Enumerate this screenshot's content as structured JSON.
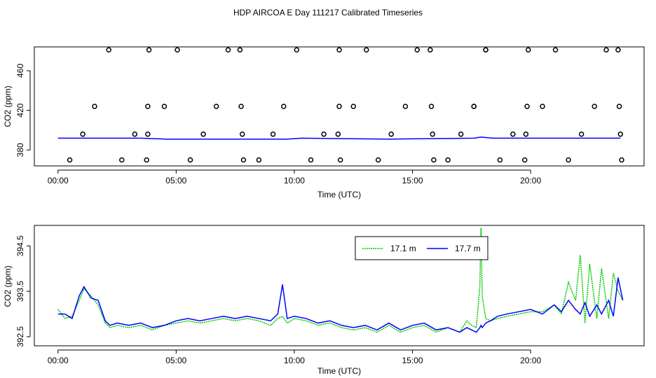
{
  "title": "HDP AIRCOA E  Day 111217  Calibrated Timeseries",
  "colors": {
    "s1": "#00c800",
    "s2": "#0000ff",
    "open_circles": "#000000"
  },
  "chart_data": [
    {
      "type": "scatter",
      "xlabel": "Time (UTC)",
      "ylabel": "CO2 (ppm)",
      "x_unit": "hours UTC",
      "xlim": [
        -1.0,
        24.8
      ],
      "ylim": [
        364,
        484
      ],
      "x_ticks": [
        0,
        5,
        10,
        15,
        20
      ],
      "x_tick_labels": [
        "00:00",
        "05:00",
        "10:00",
        "15:00",
        "20:00"
      ],
      "y_ticks": [
        380,
        420,
        460
      ],
      "y_tick_labels": [
        "380",
        "420",
        "460"
      ],
      "grid": false,
      "baseline_series": [
        {
          "x": [
            0,
            3.5,
            4.6,
            9.7,
            10.3,
            14.0,
            17.6,
            17.9,
            18.4,
            23.8
          ],
          "values": [
            392,
            392,
            391,
            391,
            392,
            391,
            392,
            393,
            392,
            392
          ]
        }
      ],
      "circle_points": {
        "x": [
          0.5,
          2.15,
          1.05,
          1.55,
          2.7,
          3.25,
          3.75,
          3.8,
          3.8,
          3.85,
          4.5,
          5.05,
          5.6,
          6.15,
          6.7,
          7.2,
          7.7,
          7.75,
          7.8,
          7.85,
          8.5,
          9.1,
          9.55,
          10.1,
          10.7,
          11.25,
          11.85,
          11.9,
          11.9,
          11.95,
          12.5,
          13.05,
          13.55,
          14.1,
          14.7,
          15.2,
          15.75,
          15.8,
          15.85,
          15.9,
          16.5,
          17.05,
          17.6,
          17.6,
          18.1,
          18.1,
          18.7,
          19.25,
          19.75,
          19.8,
          19.85,
          19.9,
          20.5,
          21.05,
          21.6,
          22.15,
          22.7,
          23.2,
          23.7,
          23.75,
          23.8,
          23.85
        ],
        "values": [
          370,
          481,
          396,
          424,
          370,
          396,
          370,
          396,
          424,
          481,
          424,
          481,
          370,
          396,
          424,
          481,
          481,
          424,
          396,
          370,
          370,
          396,
          424,
          481,
          370,
          396,
          396,
          424,
          481,
          370,
          424,
          481,
          370,
          396,
          424,
          481,
          481,
          424,
          396,
          370,
          370,
          396,
          424,
          424,
          481,
          481,
          370,
          396,
          370,
          396,
          424,
          481,
          424,
          481,
          370,
          396,
          424,
          481,
          481,
          424,
          396,
          370
        ]
      }
    },
    {
      "type": "line",
      "xlabel": "Time (UTC)",
      "ylabel": "CO2 (ppm)",
      "x_unit": "hours UTC",
      "xlim": [
        -1.0,
        24.8
      ],
      "ylim": [
        392.3,
        394.95
      ],
      "x_ticks": [
        0,
        5,
        10,
        15,
        20
      ],
      "x_tick_labels": [
        "00:00",
        "05:00",
        "10:00",
        "15:00",
        "20:00"
      ],
      "y_ticks": [
        392.5,
        393.5,
        394.5
      ],
      "y_tick_labels": [
        "392.5",
        "393.5",
        "394.5"
      ],
      "grid": false,
      "legend": {
        "placement": "top-right",
        "entries": [
          "17.1 m",
          "17.7 m"
        ]
      },
      "series": [
        {
          "name": "17.1 m",
          "color": "#00c800",
          "x": [
            0,
            0.3,
            0.6,
            0.9,
            1.1,
            1.4,
            1.7,
            2.0,
            2.2,
            2.5,
            3.0,
            3.5,
            4.0,
            4.5,
            5.0,
            5.5,
            6.0,
            6.5,
            7.0,
            7.5,
            8.0,
            8.5,
            9.0,
            9.3,
            9.5,
            9.7,
            10.0,
            10.5,
            11.0,
            11.5,
            12.0,
            12.5,
            13.0,
            13.5,
            14.0,
            14.5,
            15.0,
            15.5,
            16.0,
            16.5,
            17.0,
            17.3,
            17.5,
            17.7,
            17.85,
            17.9,
            17.95,
            18.1,
            18.3,
            18.6,
            19.0,
            19.5,
            20.0,
            20.5,
            21.0,
            21.3,
            21.6,
            21.9,
            22.1,
            22.3,
            22.5,
            22.8,
            23.0,
            23.3,
            23.5,
            23.7,
            23.9
          ],
          "values": [
            393.1,
            392.9,
            392.95,
            393.3,
            393.55,
            393.4,
            393.2,
            392.8,
            392.7,
            392.75,
            392.7,
            392.75,
            392.65,
            392.75,
            392.8,
            392.85,
            392.8,
            392.85,
            392.9,
            392.85,
            392.9,
            392.85,
            392.75,
            392.9,
            392.95,
            392.8,
            392.9,
            392.85,
            392.75,
            392.8,
            392.7,
            392.65,
            392.7,
            392.6,
            392.75,
            392.6,
            392.7,
            392.75,
            392.6,
            392.7,
            392.6,
            392.85,
            392.75,
            392.7,
            393.6,
            394.9,
            393.4,
            392.9,
            392.85,
            392.9,
            392.95,
            393.0,
            393.05,
            393.05,
            393.2,
            393.0,
            393.7,
            393.3,
            394.3,
            392.8,
            394.1,
            392.9,
            394.0,
            392.9,
            393.9,
            393.5,
            393.3
          ]
        },
        {
          "name": "17.7 m",
          "color": "#0000ff",
          "x": [
            0,
            0.3,
            0.6,
            0.9,
            1.1,
            1.4,
            1.7,
            2.0,
            2.2,
            2.5,
            3.0,
            3.5,
            4.0,
            4.5,
            5.0,
            5.5,
            6.0,
            6.5,
            7.0,
            7.5,
            8.0,
            8.5,
            9.0,
            9.3,
            9.5,
            9.7,
            10.0,
            10.5,
            11.0,
            11.5,
            12.0,
            12.5,
            13.0,
            13.5,
            14.0,
            14.5,
            15.0,
            15.5,
            16.0,
            16.5,
            17.0,
            17.3,
            17.5,
            17.7,
            17.85,
            17.9,
            17.95,
            18.1,
            18.3,
            18.6,
            19.0,
            19.5,
            20.0,
            20.5,
            21.0,
            21.3,
            21.6,
            21.9,
            22.1,
            22.3,
            22.5,
            22.8,
            23.0,
            23.3,
            23.5,
            23.7,
            23.9
          ],
          "values": [
            393.0,
            393.0,
            392.9,
            393.4,
            393.6,
            393.35,
            393.3,
            392.85,
            392.75,
            392.8,
            392.75,
            392.8,
            392.7,
            392.75,
            392.85,
            392.9,
            392.85,
            392.9,
            392.95,
            392.9,
            392.95,
            392.9,
            392.85,
            393.0,
            393.65,
            392.9,
            392.95,
            392.9,
            392.8,
            392.85,
            392.75,
            392.7,
            392.75,
            392.65,
            392.8,
            392.65,
            392.75,
            392.8,
            392.65,
            392.7,
            392.6,
            392.7,
            392.65,
            392.6,
            392.7,
            392.75,
            392.7,
            392.8,
            392.85,
            392.95,
            393.0,
            393.05,
            393.1,
            393.0,
            393.2,
            393.05,
            393.3,
            393.1,
            393.0,
            393.25,
            392.95,
            393.2,
            393.0,
            393.3,
            392.95,
            393.8,
            393.3
          ]
        }
      ]
    }
  ]
}
